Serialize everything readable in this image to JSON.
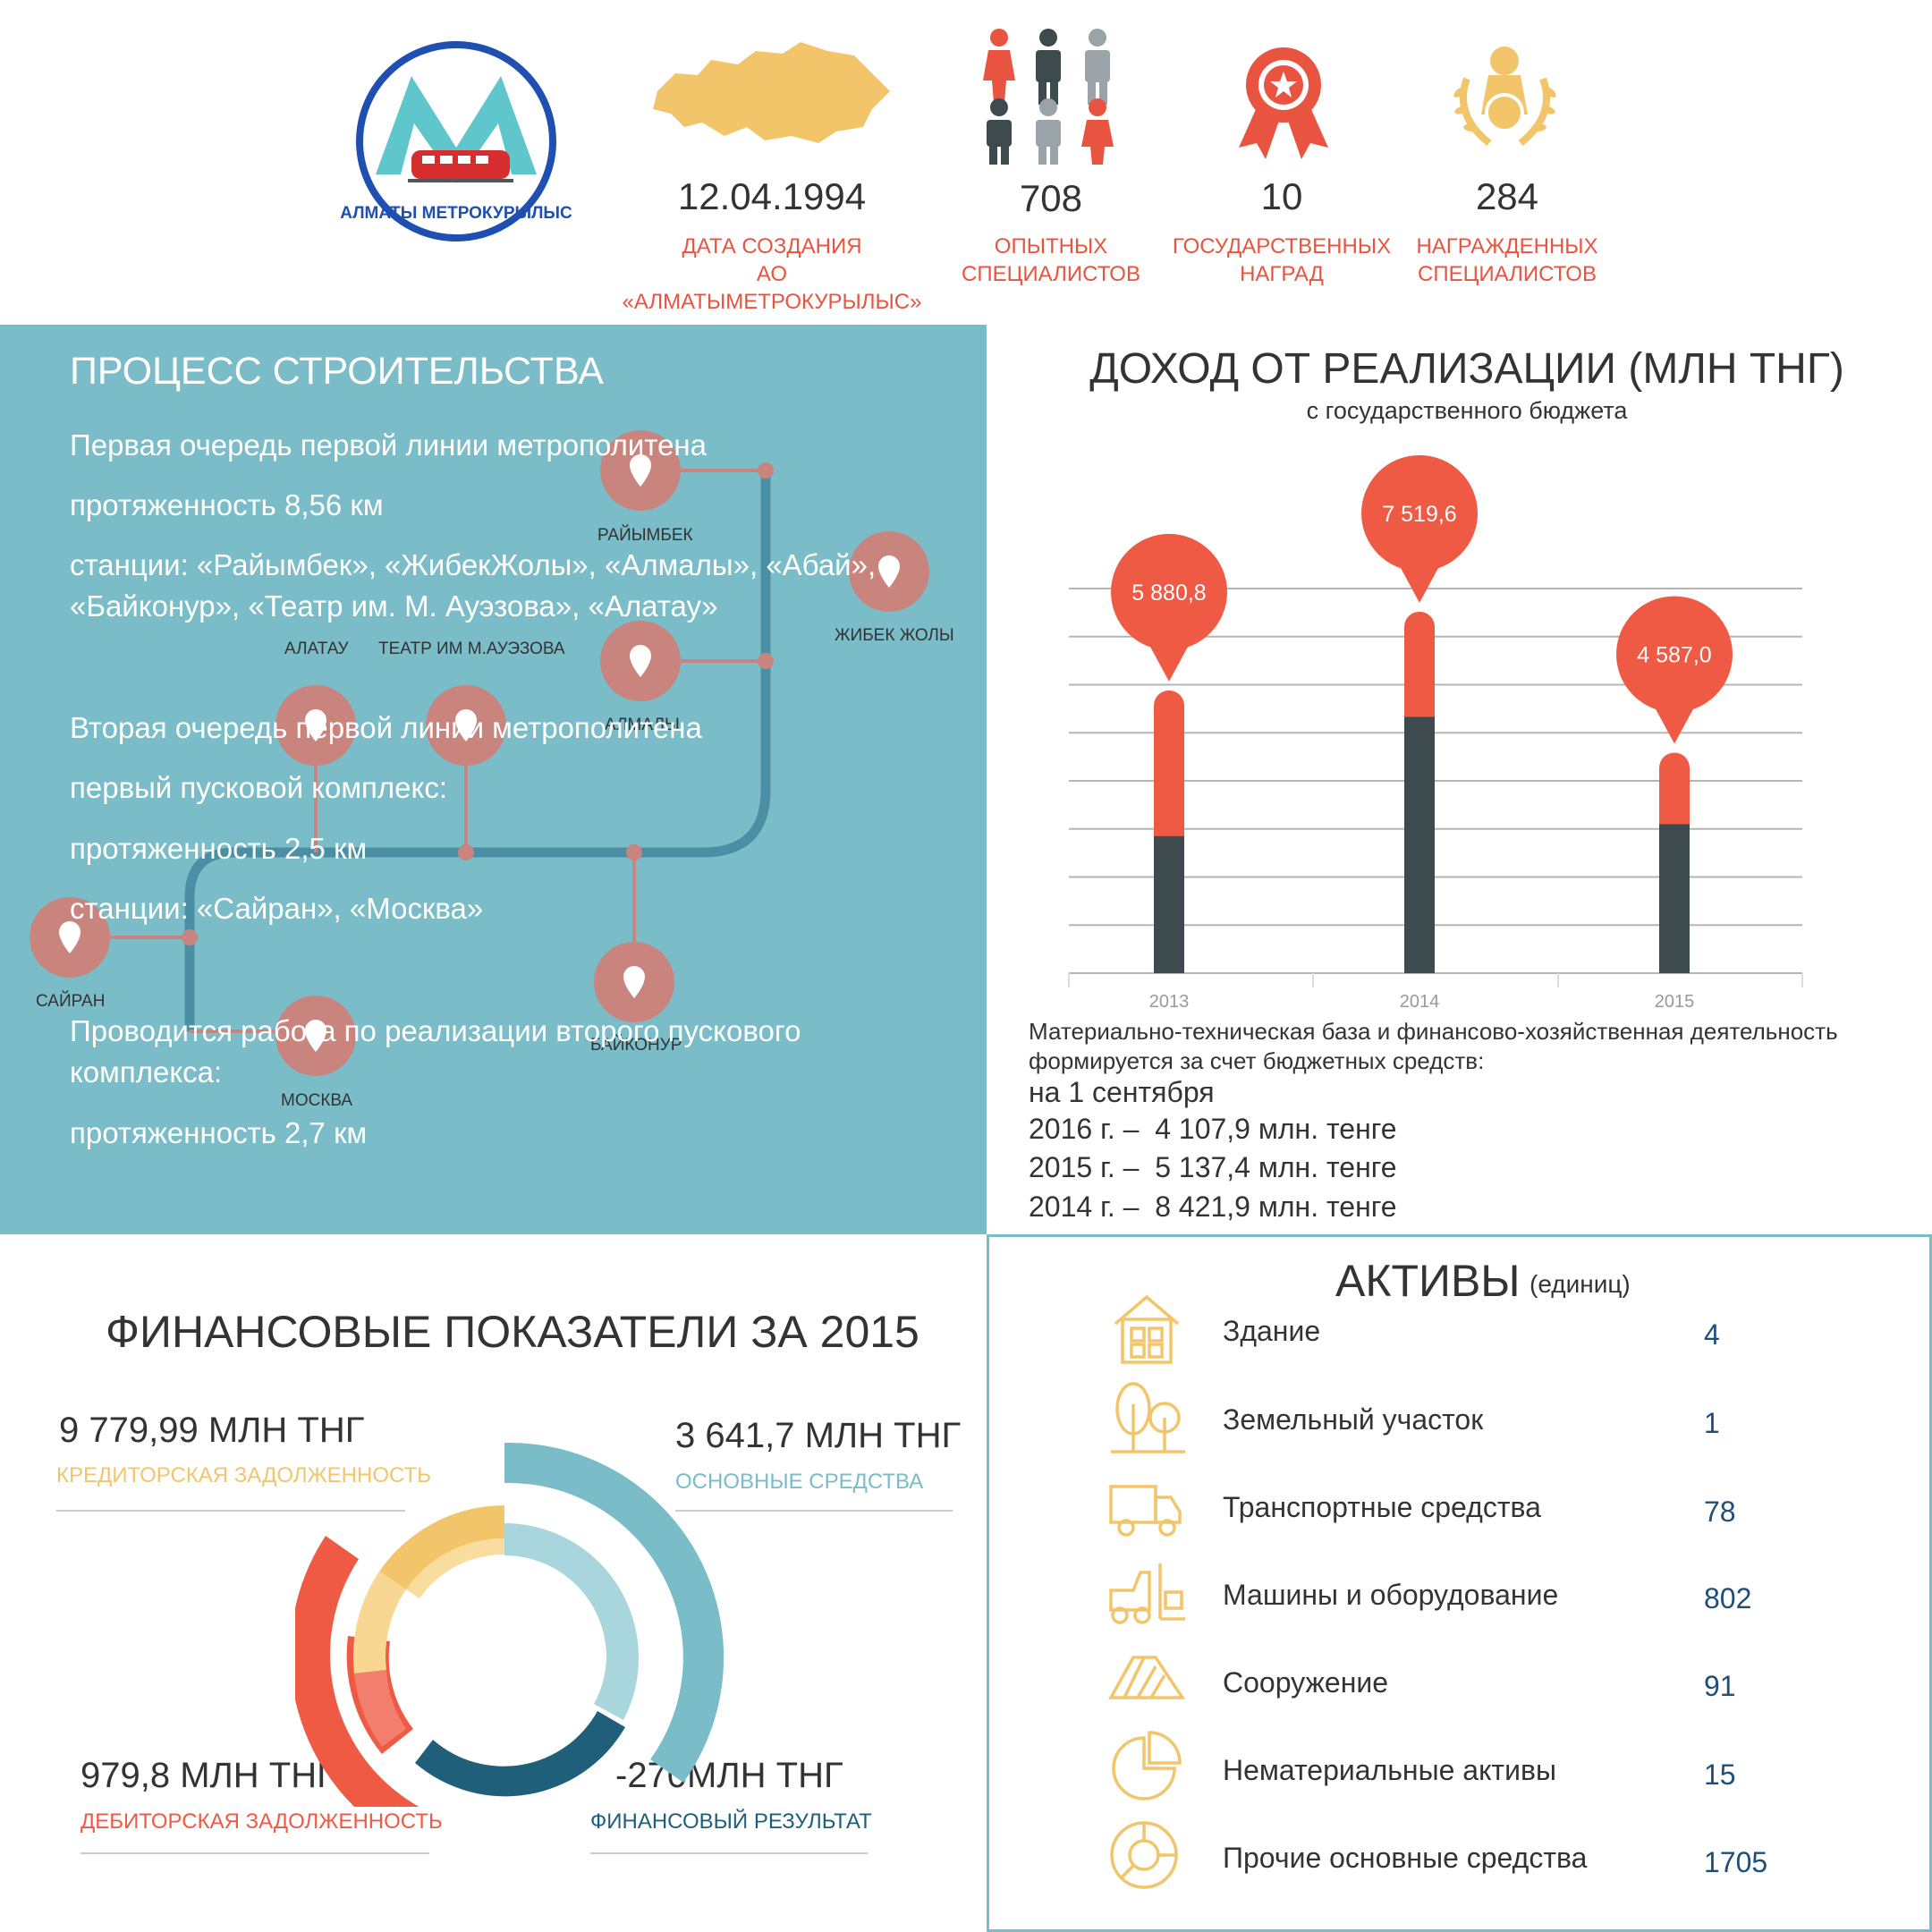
{
  "logo": {
    "text": "АЛМАТЫ МЕТРОКУРЫЛЫС"
  },
  "stats": [
    {
      "value": "12.04.1994",
      "label_line1": "ДАТА СОЗДАНИЯ",
      "label_line2": "АО «АЛМАТЫМЕТРОКУРЫЛЫС»",
      "icon": "kazakhstan-map-icon"
    },
    {
      "value": "708",
      "label_line1": "ОПЫТНЫХ",
      "label_line2": "СПЕЦИАЛИСТОВ",
      "icon": "people-icon"
    },
    {
      "value": "10",
      "label_line1": "ГОСУДАРСТВЕННЫХ",
      "label_line2": "НАГРАД",
      "icon": "award-ribbon-icon"
    },
    {
      "value": "284",
      "label_line1": "НАГРАЖДЕННЫХ",
      "label_line2": "СПЕЦИАЛИСТОВ",
      "icon": "medal-laurel-icon"
    }
  ],
  "construction": {
    "title": "ПРОЦЕСС СТРОИТЕЛЬСТВА",
    "p1_line1": "Первая очередь первой линии метрополитена",
    "p1_line2": "протяженность 8,56 км",
    "p1_line3": "станции: «Райымбек», «ЖибекЖолы», «Алмалы», «Абай»,",
    "p1_line4": "«Байконур», «Театр им. М. Ауэзова», «Алатау»",
    "p2_line1": "Вторая очередь первой линии метрополитена",
    "p2_line2": "первый пусковой комплекс:",
    "p2_line3": "протяженность 2,5 км",
    "p2_line4": "станции: «Сайран», «Москва»",
    "p3_line1": "Проводится работа по реализации второго пускового",
    "p3_line2": "комплекса:",
    "p3_line3": "протяженность 2,7 км",
    "stations": {
      "raiymbek": "РАЙЫМБЕК",
      "zhibek": "ЖИБЕК ЖОЛЫ",
      "almaly": "АЛМАЛЫ",
      "alatau": "АЛАТАУ",
      "auezov": "ТЕАТР ИМ М.АУЭЗОВА",
      "baikonur": "БАЙКОНУР",
      "sairan": "САЙРАН",
      "moskva": "МОСКВА"
    },
    "colors": {
      "panel": "#7abcc8",
      "line": "#4a8fa3",
      "pin": "#c9847e"
    }
  },
  "income": {
    "title": "ДОХОД ОТ РЕАЛИЗАЦИИ (МЛН ТНГ)",
    "subtitle": "с государственного бюджета",
    "note_line1": "Материально-техническая база и финансово-хозяйственная деятельность",
    "note_line2": "формируется за счет бюджетных средств:",
    "note_line3": "на 1 сентября",
    "rows": [
      "2016 г. –  4 107,9 млн. тенге",
      "2015 г. –  5 137,4 млн. тенге",
      "2014 г. –  8 421,9 млн. тенге"
    ]
  },
  "chart_data": {
    "type": "bar",
    "categories": [
      "2013",
      "2014",
      "2015"
    ],
    "values": [
      5880.8,
      7519.6,
      4587.0
    ],
    "value_labels": [
      "5 880,8",
      "7 519,6",
      "4 587,0"
    ],
    "dark_portion": [
      2850,
      5330,
      3100
    ],
    "ylim": [
      0,
      8000
    ],
    "grid": true,
    "colors": {
      "bar": "#ef5a45",
      "bar_dark": "#3d4a4e",
      "grid": "#b5b5b5"
    }
  },
  "finance": {
    "title": "ФИНАНСОВЫЕ ПОКАЗАТЕЛИ ЗА 2015",
    "items": [
      {
        "value": "9 779,99 МЛН ТНГ",
        "label": "КРЕДИТОРСКАЯ ЗАДОЛЖЕННОСТЬ",
        "color": "#f3c56a"
      },
      {
        "value": "3 641,7 МЛН ТНГ",
        "label": "ОСНОВНЫЕ СРЕДСТВА",
        "color": "#7abcc8"
      },
      {
        "value": "979,8 МЛН ТНГ",
        "label": "ДЕБИТОРСКАЯ ЗАДОЛЖЕННОСТЬ",
        "color": "#ef5a45"
      },
      {
        "value": "-270МЛН ТНГ",
        "label": "ФИНАНСОВЫЙ РЕЗУЛЬТАТ",
        "color": "#1f5f7a"
      }
    ]
  },
  "assets": {
    "title": "АКТИВЫ",
    "unit": "(единиц)",
    "items": [
      {
        "name": "Здание",
        "value": "4",
        "icon": "building-icon"
      },
      {
        "name": "Земельный участок",
        "value": "1",
        "icon": "trees-icon"
      },
      {
        "name": "Транспортные средства",
        "value": "78",
        "icon": "truck-icon"
      },
      {
        "name": "Машины и оборудование",
        "value": "802",
        "icon": "forklift-icon"
      },
      {
        "name": "Сооружение",
        "value": "91",
        "icon": "structure-icon"
      },
      {
        "name": "Нематериальные активы",
        "value": "15",
        "icon": "pie-icon"
      },
      {
        "name": "Прочие основные средства",
        "value": "1705",
        "icon": "donut-icon"
      }
    ],
    "icon_color": "#f3c56a"
  }
}
